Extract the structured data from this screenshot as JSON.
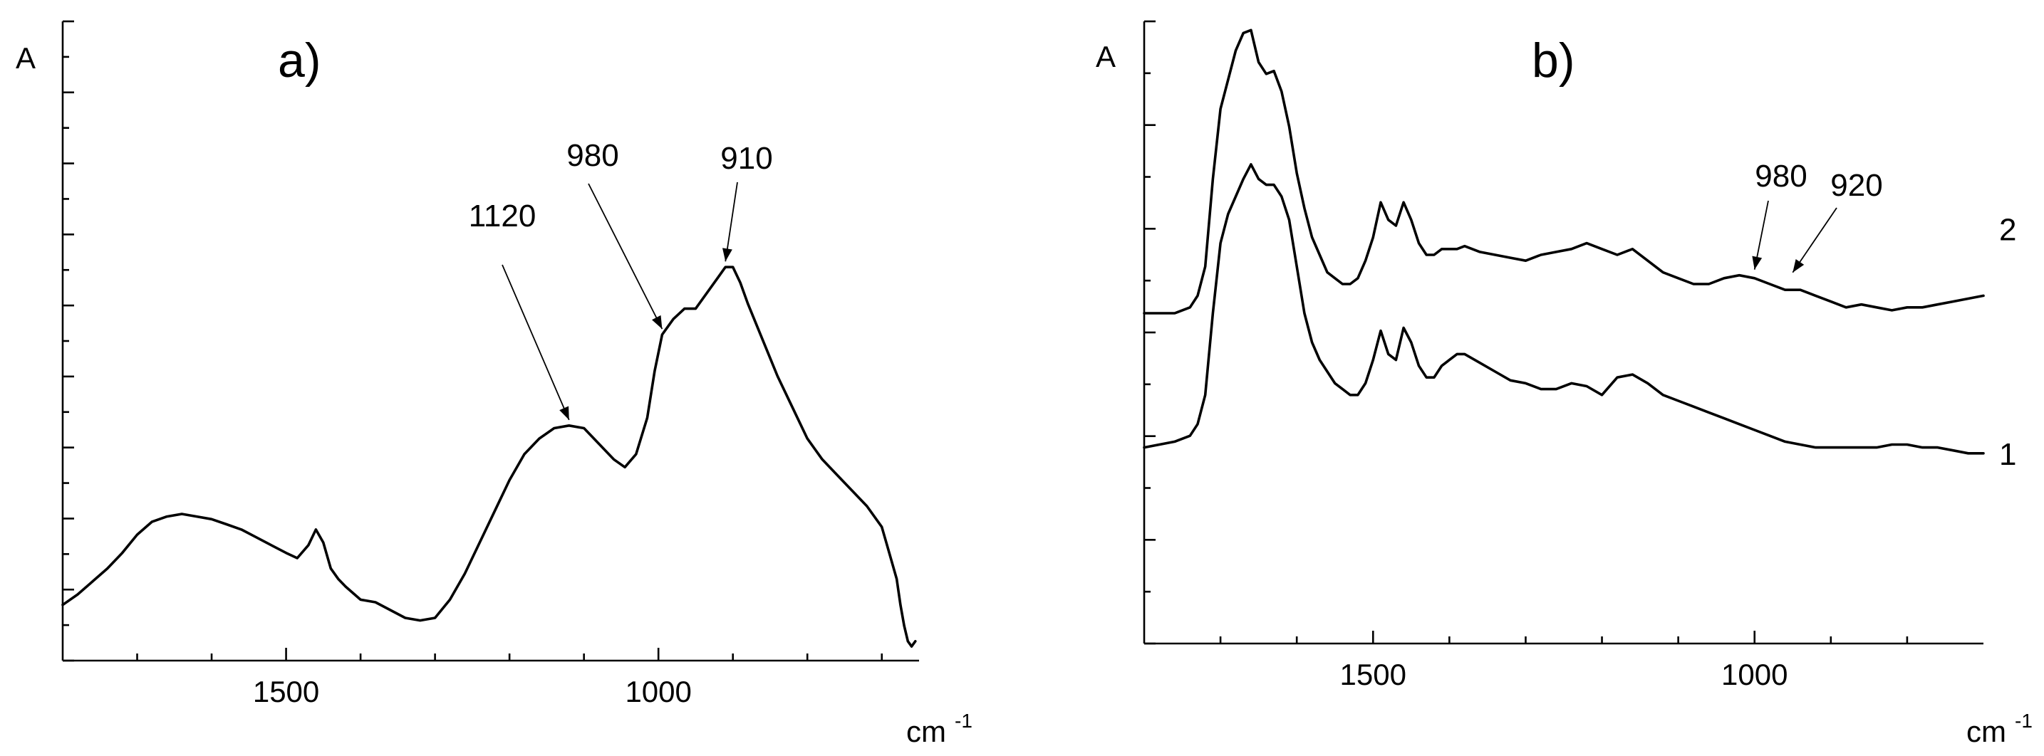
{
  "chart_data": [
    {
      "type": "line",
      "panel_label": "a)",
      "ylabel": "A",
      "xlabel": "cm",
      "xlabel_sup": "-1",
      "xlim": [
        1800,
        650
      ],
      "xticks": [
        "1500",
        "1000"
      ],
      "ylim": [
        0,
        1
      ],
      "grid": false,
      "series": [
        {
          "x": [
            1800,
            1780,
            1760,
            1740,
            1720,
            1700,
            1680,
            1660,
            1640,
            1620,
            1600,
            1580,
            1560,
            1540,
            1520,
            1500,
            1485,
            1470,
            1460,
            1450,
            1440,
            1430,
            1420,
            1400,
            1380,
            1360,
            1340,
            1320,
            1300,
            1280,
            1260,
            1240,
            1220,
            1200,
            1180,
            1160,
            1140,
            1120,
            1100,
            1080,
            1060,
            1045,
            1030,
            1015,
            1005,
            995,
            980,
            965,
            950,
            935,
            920,
            910,
            900,
            890,
            880,
            860,
            840,
            820,
            800,
            780,
            760,
            740,
            720,
            700,
            690,
            680,
            675,
            670,
            665,
            660,
            655
          ],
          "y": [
            0.11,
            0.13,
            0.155,
            0.18,
            0.21,
            0.245,
            0.27,
            0.28,
            0.285,
            0.28,
            0.275,
            0.265,
            0.255,
            0.24,
            0.225,
            0.21,
            0.2,
            0.225,
            0.255,
            0.23,
            0.18,
            0.16,
            0.145,
            0.12,
            0.115,
            0.1,
            0.085,
            0.08,
            0.085,
            0.12,
            0.17,
            0.23,
            0.29,
            0.35,
            0.4,
            0.43,
            0.45,
            0.455,
            0.45,
            0.42,
            0.39,
            0.375,
            0.4,
            0.47,
            0.56,
            0.63,
            0.66,
            0.68,
            0.68,
            0.71,
            0.74,
            0.76,
            0.76,
            0.73,
            0.69,
            0.62,
            0.55,
            0.49,
            0.43,
            0.39,
            0.36,
            0.33,
            0.3,
            0.26,
            0.21,
            0.16,
            0.11,
            0.07,
            0.04,
            0.03,
            0.04
          ]
        }
      ],
      "annotations": [
        {
          "text": "1120",
          "x": 1120,
          "y": 0.455
        },
        {
          "text": "980",
          "x": 995,
          "y": 0.63
        },
        {
          "text": "910",
          "x": 910,
          "y": 0.76
        }
      ]
    },
    {
      "type": "line",
      "panel_label": "b)",
      "ylabel": "A",
      "xlabel": "cm",
      "xlabel_sup": "-1",
      "xlim": [
        1800,
        700
      ],
      "xticks": [
        "1500",
        "1000"
      ],
      "ylim": [
        0,
        1
      ],
      "grid": false,
      "series": [
        {
          "name": "1",
          "x": [
            1800,
            1780,
            1760,
            1740,
            1730,
            1720,
            1710,
            1700,
            1690,
            1680,
            1670,
            1660,
            1650,
            1640,
            1630,
            1620,
            1610,
            1600,
            1590,
            1580,
            1570,
            1560,
            1550,
            1540,
            1530,
            1520,
            1510,
            1500,
            1490,
            1480,
            1470,
            1460,
            1450,
            1440,
            1430,
            1420,
            1410,
            1400,
            1390,
            1380,
            1360,
            1340,
            1320,
            1300,
            1280,
            1260,
            1240,
            1220,
            1200,
            1180,
            1160,
            1140,
            1120,
            1100,
            1080,
            1060,
            1040,
            1020,
            1000,
            980,
            960,
            940,
            920,
            900,
            880,
            860,
            840,
            820,
            800,
            780,
            760,
            740,
            720,
            700
          ],
          "y": [
            0.27,
            0.275,
            0.28,
            0.29,
            0.31,
            0.36,
            0.5,
            0.62,
            0.67,
            0.7,
            0.73,
            0.755,
            0.73,
            0.72,
            0.72,
            0.7,
            0.66,
            0.58,
            0.5,
            0.45,
            0.42,
            0.4,
            0.38,
            0.37,
            0.36,
            0.36,
            0.38,
            0.42,
            0.47,
            0.43,
            0.42,
            0.475,
            0.45,
            0.41,
            0.39,
            0.39,
            0.41,
            0.42,
            0.43,
            0.43,
            0.415,
            0.4,
            0.385,
            0.38,
            0.37,
            0.37,
            0.38,
            0.375,
            0.36,
            0.39,
            0.395,
            0.38,
            0.36,
            0.35,
            0.34,
            0.33,
            0.32,
            0.31,
            0.3,
            0.29,
            0.28,
            0.275,
            0.27,
            0.27,
            0.27,
            0.27,
            0.27,
            0.275,
            0.275,
            0.27,
            0.27,
            0.265,
            0.26,
            0.26
          ]
        },
        {
          "name": "2",
          "x": [
            1800,
            1780,
            1760,
            1740,
            1730,
            1720,
            1710,
            1700,
            1690,
            1680,
            1670,
            1660,
            1650,
            1640,
            1630,
            1620,
            1610,
            1600,
            1590,
            1580,
            1570,
            1560,
            1550,
            1540,
            1530,
            1520,
            1510,
            1500,
            1490,
            1480,
            1470,
            1460,
            1450,
            1440,
            1430,
            1420,
            1410,
            1400,
            1390,
            1380,
            1360,
            1340,
            1320,
            1300,
            1280,
            1260,
            1240,
            1220,
            1200,
            1180,
            1160,
            1140,
            1120,
            1100,
            1080,
            1060,
            1040,
            1020,
            1000,
            980,
            960,
            940,
            920,
            900,
            880,
            860,
            840,
            820,
            800,
            780,
            760,
            740,
            720,
            700
          ],
          "y": [
            0.5,
            0.5,
            0.5,
            0.51,
            0.53,
            0.58,
            0.73,
            0.85,
            0.9,
            0.95,
            0.98,
            0.985,
            0.93,
            0.91,
            0.915,
            0.88,
            0.82,
            0.74,
            0.68,
            0.63,
            0.6,
            0.57,
            0.56,
            0.55,
            0.55,
            0.56,
            0.59,
            0.63,
            0.69,
            0.66,
            0.65,
            0.69,
            0.66,
            0.62,
            0.6,
            0.6,
            0.61,
            0.61,
            0.61,
            0.615,
            0.605,
            0.6,
            0.595,
            0.59,
            0.6,
            0.605,
            0.61,
            0.62,
            0.61,
            0.6,
            0.61,
            0.59,
            0.57,
            0.56,
            0.55,
            0.55,
            0.56,
            0.565,
            0.56,
            0.55,
            0.54,
            0.54,
            0.53,
            0.52,
            0.51,
            0.515,
            0.51,
            0.505,
            0.51,
            0.51,
            0.515,
            0.52,
            0.525,
            0.53
          ]
        }
      ],
      "annotations": [
        {
          "text": "980",
          "x": 1000,
          "y": 0.565
        },
        {
          "text": "920",
          "x": 950,
          "y": 0.56
        }
      ]
    }
  ]
}
